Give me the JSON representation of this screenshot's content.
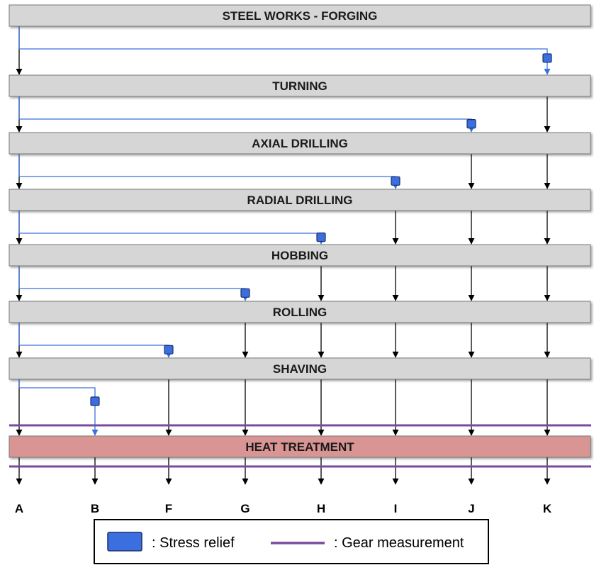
{
  "stages": [
    {
      "label": "STEEL WORKS - FORGING",
      "fill": "#d6d6d6"
    },
    {
      "label": "TURNING",
      "fill": "#d6d6d6"
    },
    {
      "label": "AXIAL DRILLING",
      "fill": "#d6d6d6"
    },
    {
      "label": "RADIAL DRILLING",
      "fill": "#d6d6d6"
    },
    {
      "label": "HOBBING",
      "fill": "#d6d6d6"
    },
    {
      "label": "ROLLING",
      "fill": "#d6d6d6"
    },
    {
      "label": "SHAVING",
      "fill": "#d6d6d6"
    },
    {
      "label": "HEAT TREATMENT",
      "fill": "#d99594"
    }
  ],
  "columns": [
    "A",
    "B",
    "F",
    "G",
    "H",
    "I",
    "J",
    "K"
  ],
  "stress_relief_branches": [
    {
      "after_stage": "STEEL WORKS - FORGING",
      "to_column": "K"
    },
    {
      "after_stage": "TURNING",
      "to_column": "J"
    },
    {
      "after_stage": "AXIAL DRILLING",
      "to_column": "I"
    },
    {
      "after_stage": "RADIAL DRILLING",
      "to_column": "H"
    },
    {
      "after_stage": "HOBBING",
      "to_column": "G"
    },
    {
      "after_stage": "ROLLING",
      "to_column": "F"
    },
    {
      "after_stage": "SHAVING",
      "to_column": "B"
    }
  ],
  "legend": {
    "stress_relief_label": ": Stress relief",
    "gear_measurement_label": ": Gear measurement"
  },
  "colors": {
    "stage_box": "#d6d6d6",
    "heat_treatment_box": "#d99594",
    "stress_relief": "#3b6fe0",
    "branch_line": "#3b6fe0",
    "gear_measurement": "#7a4a9a",
    "arrow": "#000000"
  }
}
